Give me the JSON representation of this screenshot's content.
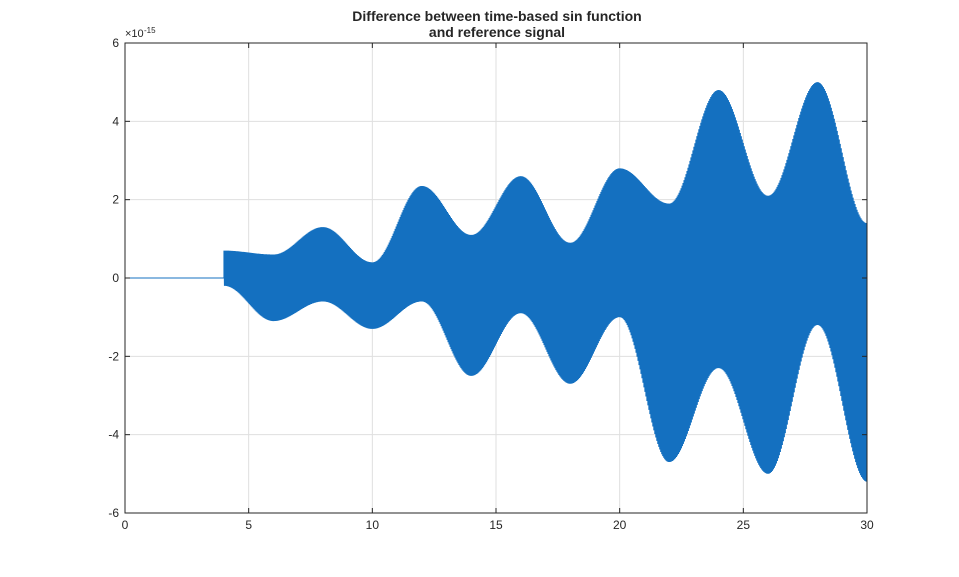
{
  "chart_data": {
    "type": "line",
    "title_lines": [
      "Difference between time-based sin function",
      "and reference signal"
    ],
    "xlabel": "",
    "ylabel": "",
    "xlim": [
      0,
      30
    ],
    "ylim": [
      -6,
      6
    ],
    "x_ticks": [
      0,
      5,
      10,
      15,
      20,
      25,
      30
    ],
    "x_tick_labels": [
      "0",
      "5",
      "10",
      "15",
      "20",
      "25",
      "30"
    ],
    "y_ticks": [
      -6,
      -4,
      -2,
      0,
      2,
      4,
      6
    ],
    "y_tick_labels": [
      "-6",
      "-4",
      "-2",
      "0",
      "2",
      "4",
      "6"
    ],
    "y_exponent_base": "×10",
    "y_exponent_power": "-15",
    "grid": true,
    "line_color": "#1470c0",
    "series": [
      {
        "name": "difference",
        "description": "zero until t=4, then oscillating error with beating envelope (peaks every ~2 s), units ×1e-15",
        "flat_until": 4,
        "envelope": [
          {
            "t": 4.0,
            "upper": 0.7,
            "lower": -0.2
          },
          {
            "t": 6.0,
            "upper": 0.6,
            "lower": -1.1
          },
          {
            "t": 8.0,
            "upper": 1.3,
            "lower": -0.6
          },
          {
            "t": 10.0,
            "upper": 0.4,
            "lower": -1.3
          },
          {
            "t": 12.0,
            "upper": 2.35,
            "lower": -0.6
          },
          {
            "t": 14.0,
            "upper": 1.1,
            "lower": -2.5
          },
          {
            "t": 16.0,
            "upper": 2.6,
            "lower": -0.9
          },
          {
            "t": 18.0,
            "upper": 0.9,
            "lower": -2.7
          },
          {
            "t": 20.0,
            "upper": 2.8,
            "lower": -1.0
          },
          {
            "t": 22.0,
            "upper": 1.9,
            "lower": -4.7
          },
          {
            "t": 24.0,
            "upper": 4.8,
            "lower": -2.3
          },
          {
            "t": 26.0,
            "upper": 2.1,
            "lower": -5.0
          },
          {
            "t": 28.0,
            "upper": 5.0,
            "lower": -1.2
          },
          {
            "t": 30.0,
            "upper": 1.4,
            "lower": -5.2
          }
        ]
      }
    ]
  }
}
